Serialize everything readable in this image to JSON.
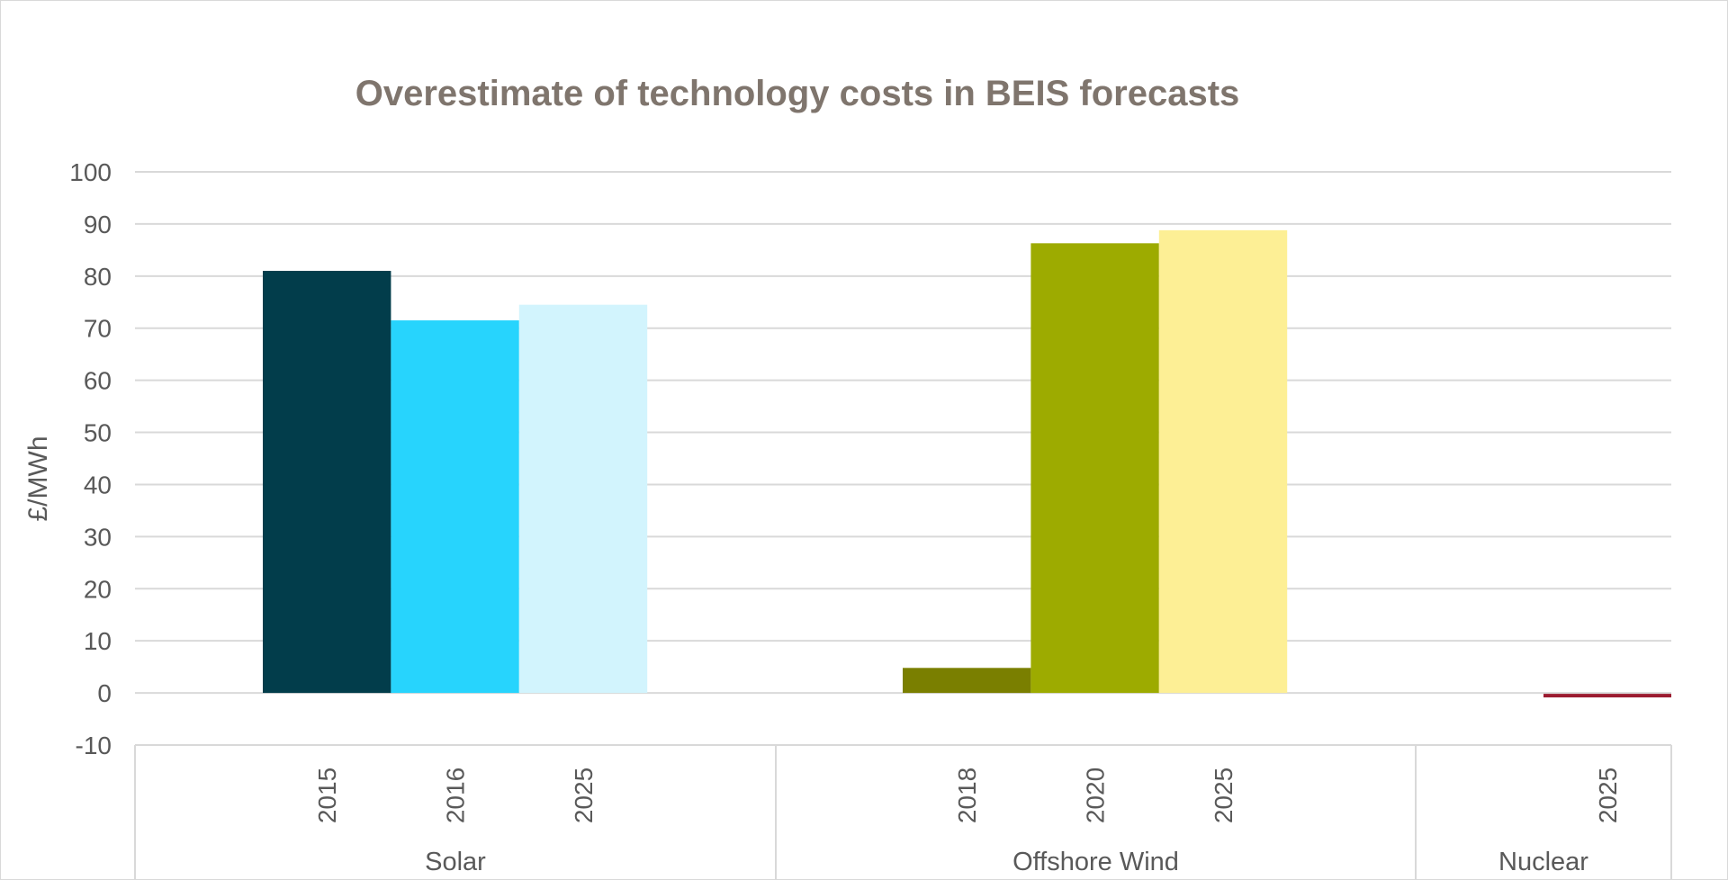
{
  "chart_data": {
    "type": "bar",
    "title": "Overestimate of technology costs in BEIS forecasts",
    "ylabel": "£/MWh",
    "xlabel": "",
    "ylim": [
      -10,
      100
    ],
    "yticks": [
      100,
      90,
      80,
      70,
      60,
      50,
      40,
      30,
      20,
      10,
      0,
      -10
    ],
    "grid": true,
    "legend": "none",
    "groups": [
      {
        "name": "Solar",
        "categories": [
          "2015",
          "2016",
          "2025"
        ],
        "values": [
          81,
          71.5,
          74.5
        ],
        "colors": [
          "#023d4b",
          "#27d4fd",
          "#d2f4fd"
        ]
      },
      {
        "name": "Offshore Wind",
        "categories": [
          "2018",
          "2020",
          "2025"
        ],
        "values": [
          4.8,
          86.3,
          88.8
        ],
        "colors": [
          "#7a7f00",
          "#9dab00",
          "#fdef95"
        ]
      },
      {
        "name": "Nuclear",
        "categories": [
          "2025"
        ],
        "values": [
          -0.6
        ],
        "colors": [
          "#9b1b30"
        ]
      }
    ]
  }
}
